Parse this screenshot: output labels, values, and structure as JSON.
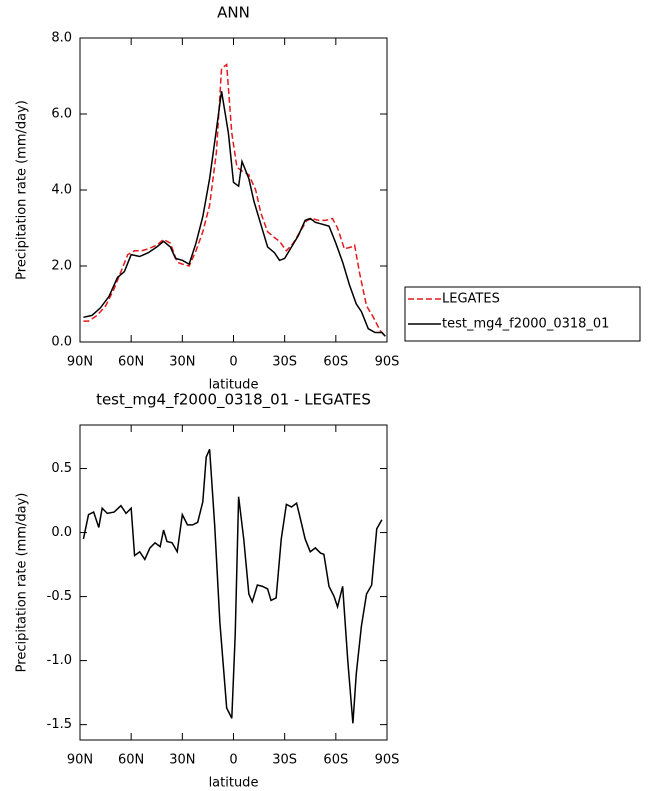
{
  "chart_data": [
    {
      "type": "line",
      "title": "ANN",
      "ylabel": "Precipitation rate (mm/day)",
      "xlabel": "latitude",
      "xlim": [
        90,
        -90
      ],
      "xticks": [
        {
          "value": 90,
          "label": "90N"
        },
        {
          "value": 60,
          "label": "60N"
        },
        {
          "value": 30,
          "label": "30N"
        },
        0,
        {
          "value": -30,
          "label": "30S"
        },
        {
          "value": -60,
          "label": "60S"
        },
        {
          "value": -90,
          "label": "90S"
        }
      ],
      "ylim": [
        0,
        8
      ],
      "yticks": [
        {
          "value": 0,
          "label": "0.0"
        },
        {
          "value": 2,
          "label": "2.0"
        },
        {
          "value": 4,
          "label": "4.0"
        },
        {
          "value": 6,
          "label": "6.0"
        },
        {
          "value": 8,
          "label": "8.0"
        }
      ],
      "legend": "right",
      "series": [
        {
          "name": "LEGATES",
          "color": "#e41a1c",
          "linestyle": "dashed",
          "x": [
            88,
            85,
            80,
            75,
            70,
            66,
            62,
            58,
            54,
            50,
            45,
            41,
            37,
            33,
            30,
            26,
            22,
            18,
            14,
            10,
            7,
            4,
            1,
            -2,
            -5,
            -9,
            -13,
            -16,
            -20,
            -24,
            -27,
            -31,
            -35,
            -39,
            -43,
            -46,
            -50,
            -54,
            -58,
            -61,
            -65,
            -69,
            -71,
            -74,
            -78,
            -82,
            -86,
            -89
          ],
          "values": [
            0.55,
            0.55,
            0.7,
            0.95,
            1.4,
            1.85,
            2.3,
            2.4,
            2.4,
            2.45,
            2.55,
            2.7,
            2.6,
            2.1,
            2.05,
            2.0,
            2.4,
            2.9,
            3.6,
            5.0,
            7.2,
            7.3,
            5.5,
            4.6,
            4.5,
            4.4,
            4.0,
            3.4,
            2.9,
            2.75,
            2.65,
            2.4,
            2.6,
            2.9,
            3.2,
            3.25,
            3.2,
            3.2,
            3.25,
            3.0,
            2.45,
            2.5,
            2.55,
            1.8,
            0.95,
            0.65,
            0.3,
            0.15
          ]
        },
        {
          "name": "test_mg4_f2000_0318_01",
          "color": "#000000",
          "linestyle": "solid",
          "x": [
            88,
            83,
            78,
            73,
            68,
            64,
            60,
            55,
            50,
            45,
            41,
            37,
            34,
            30,
            26,
            22,
            18,
            14,
            10,
            7,
            3,
            0,
            -3,
            -5,
            -9,
            -12,
            -16,
            -20,
            -24,
            -27,
            -30,
            -34,
            -38,
            -42,
            -45,
            -48,
            -52,
            -56,
            -60,
            -64,
            -68,
            -72,
            -75,
            -79,
            -83,
            -87,
            -89
          ],
          "values": [
            0.65,
            0.7,
            0.9,
            1.2,
            1.7,
            1.85,
            2.3,
            2.25,
            2.35,
            2.5,
            2.65,
            2.5,
            2.2,
            2.15,
            2.05,
            2.6,
            3.3,
            4.3,
            5.6,
            6.6,
            5.5,
            4.2,
            4.1,
            4.75,
            4.3,
            3.7,
            3.1,
            2.5,
            2.35,
            2.15,
            2.2,
            2.5,
            2.8,
            3.2,
            3.25,
            3.15,
            3.1,
            3.05,
            2.6,
            2.1,
            1.5,
            1.0,
            0.8,
            0.35,
            0.25,
            0.25,
            0.15
          ]
        }
      ]
    },
    {
      "type": "line",
      "title": "test_mg4_f2000_0318_01 - LEGATES",
      "ylabel": "Precipitation rate (mm/day)",
      "xlabel": "latitude",
      "xlim": [
        90,
        -90
      ],
      "xticks": [
        {
          "value": 90,
          "label": "90N"
        },
        {
          "value": 60,
          "label": "60N"
        },
        {
          "value": 30,
          "label": "30N"
        },
        0,
        {
          "value": -30,
          "label": "30S"
        },
        {
          "value": -60,
          "label": "60S"
        },
        {
          "value": -90,
          "label": "90S"
        }
      ],
      "ylim": [
        -1.62,
        0.84
      ],
      "yticks": [
        0.5,
        {
          "value": 0,
          "label": "0.0"
        },
        -0.5,
        {
          "value": -1,
          "label": "-1.0"
        },
        -1.5
      ],
      "series": [
        {
          "color": "#000000",
          "linestyle": "solid",
          "x": [
            88,
            85,
            82,
            79,
            77,
            74,
            70,
            66,
            63,
            60,
            58,
            55,
            52,
            49,
            46,
            43,
            41,
            39,
            36,
            33,
            30,
            27,
            24,
            21,
            18,
            16,
            14,
            11,
            8,
            4,
            1,
            -1,
            -3,
            -6,
            -9,
            -11,
            -14,
            -17,
            -20,
            -22,
            -25,
            -28,
            -31,
            -34,
            -37,
            -39,
            -42,
            -45,
            -48,
            -51,
            -53,
            -56,
            -59,
            -61,
            -64,
            -67,
            -70,
            -72,
            -75,
            -78,
            -81,
            -84,
            -87
          ],
          "values": [
            -0.05,
            0.14,
            0.16,
            0.04,
            0.19,
            0.15,
            0.16,
            0.21,
            0.15,
            0.19,
            -0.18,
            -0.15,
            -0.21,
            -0.12,
            -0.08,
            -0.11,
            0.02,
            -0.07,
            -0.08,
            -0.15,
            0.14,
            0.06,
            0.06,
            0.08,
            0.24,
            0.59,
            0.65,
            0.05,
            -0.7,
            -1.37,
            -1.45,
            -0.8,
            0.28,
            -0.05,
            -0.48,
            -0.54,
            -0.41,
            -0.42,
            -0.44,
            -0.53,
            -0.51,
            -0.05,
            0.22,
            0.2,
            0.23,
            0.12,
            -0.05,
            -0.15,
            -0.12,
            -0.16,
            -0.17,
            -0.42,
            -0.5,
            -0.58,
            -0.42,
            -1.0,
            -1.49,
            -1.1,
            -0.73,
            -0.48,
            -0.41,
            0.03,
            0.1
          ]
        }
      ]
    }
  ]
}
